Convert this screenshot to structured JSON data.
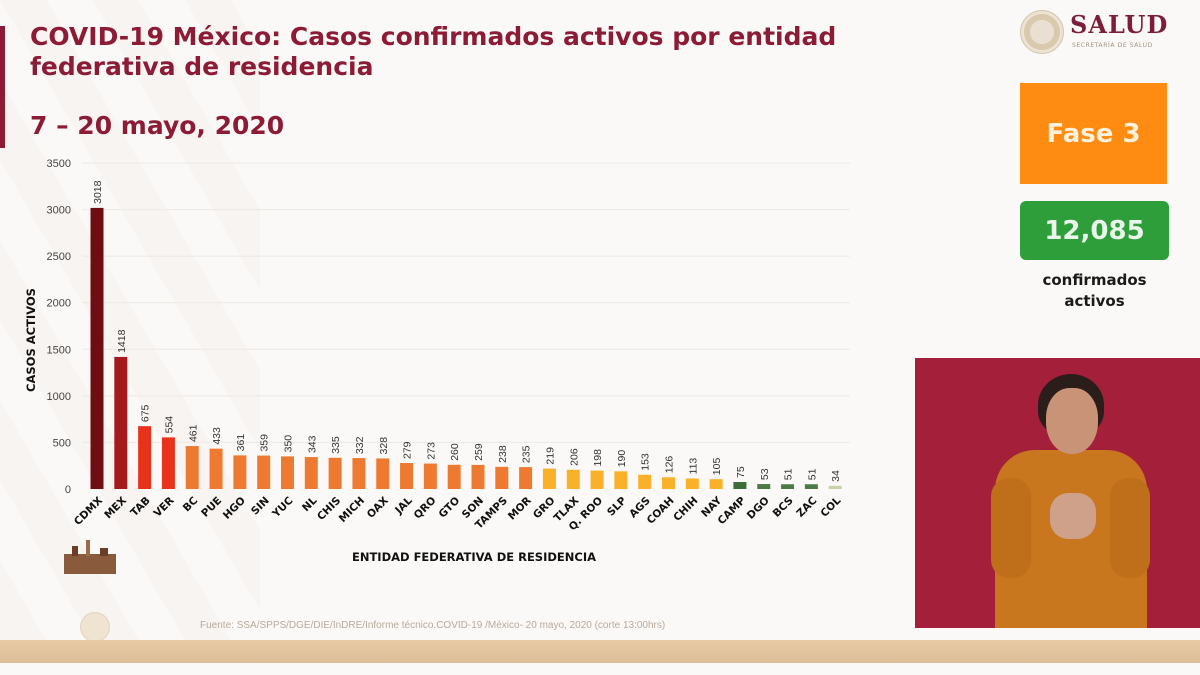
{
  "header": {
    "title": "COVID-19 México: Casos confirmados activos por entidad federativa de residencia",
    "subtitle": "7 – 20 mayo, 2020"
  },
  "logo": {
    "name": "SALUD",
    "sub": "SECRETARÍA DE SALUD",
    "icon": "national-seal-icon"
  },
  "sidebar": {
    "phase_label": "Fase 3",
    "active_count": "12,085",
    "active_count_label_line1": "confirmados",
    "active_count_label_line2": "activos",
    "colors": {
      "phase": "#ff8c12",
      "count": "#2e9e3b"
    }
  },
  "footer": {
    "source": "Fuente: SSA/SPPS/DGE/DIE/InDRE/Informe técnico.COVID-19 /México- 20 mayo, 2020 (corte 13:00hrs)"
  },
  "interpreter": {
    "description": "sign-language-interpreter-video"
  },
  "chart_data": {
    "type": "bar",
    "title": "COVID-19 México: Casos confirmados activos por entidad federativa de residencia",
    "subtitle": "7 – 20 mayo, 2020",
    "xlabel": "ENTIDAD FEDERATIVA DE  RESIDENCIA",
    "ylabel": "CASOS ACTIVOS",
    "ylim": [
      0,
      3500
    ],
    "yticks": [
      0,
      500,
      1000,
      1500,
      2000,
      2500,
      3000,
      3500
    ],
    "grid": true,
    "legend": "none",
    "categories": [
      "CDMX",
      "MEX",
      "TAB",
      "VER",
      "BC",
      "PUE",
      "HGO",
      "SIN",
      "YUC",
      "NL",
      "CHIS",
      "MICH",
      "OAX",
      "JAL",
      "QRO",
      "GTO",
      "SON",
      "TAMPS",
      "MOR",
      "GRO",
      "TLAX",
      "Q. ROO",
      "SLP",
      "AGS",
      "COAH",
      "CHIH",
      "NAY",
      "CAMP",
      "DGO",
      "BCS",
      "ZAC",
      "COL"
    ],
    "values": [
      3018,
      1418,
      675,
      554,
      461,
      433,
      361,
      359,
      350,
      343,
      335,
      332,
      328,
      279,
      273,
      260,
      259,
      238,
      235,
      219,
      206,
      198,
      190,
      153,
      126,
      113,
      105,
      75,
      53,
      51,
      51,
      34
    ],
    "colors": [
      "#6e0d12",
      "#a51a1c",
      "#e8321c",
      "#e8321c",
      "#ee7a32",
      "#ee7a32",
      "#ee7a32",
      "#ee7a32",
      "#ee7a32",
      "#ee7a32",
      "#ee7a32",
      "#ee7a32",
      "#ee7a32",
      "#ee7a32",
      "#ee7a32",
      "#ee7a32",
      "#ee7a32",
      "#ee7a32",
      "#ee7a32",
      "#f9b12a",
      "#f9b12a",
      "#f9b12a",
      "#f9b12a",
      "#f9b12a",
      "#f9b12a",
      "#f9b12a",
      "#f9b12a",
      "#3d6e3a",
      "#4a7a46",
      "#4a7a46",
      "#4a7a46",
      "#c7d2a8"
    ]
  }
}
